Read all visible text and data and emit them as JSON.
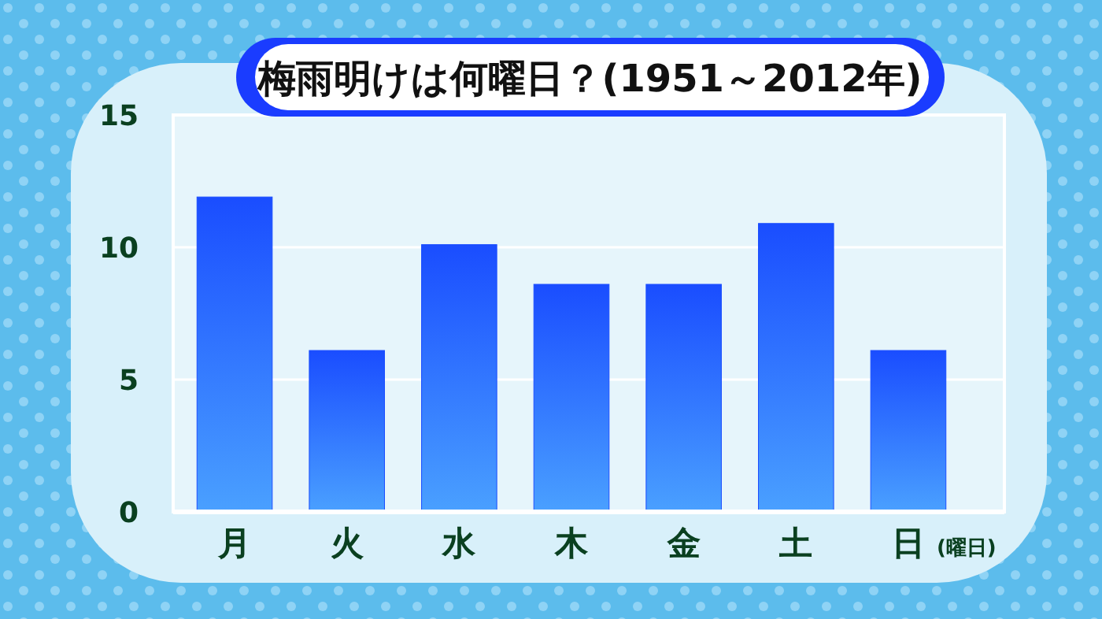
{
  "chart_data": {
    "type": "bar",
    "title": "梅雨明けは何曜日？(1951～2012年)",
    "xlabel": "(曜日)",
    "categories": [
      "月",
      "火",
      "水",
      "木",
      "金",
      "土",
      "日"
    ],
    "values": [
      11.9,
      6.1,
      10.1,
      8.6,
      8.6,
      10.9,
      6.1
    ],
    "color": "#1a4dff",
    "ylim": [
      0,
      15
    ],
    "yticks": [
      0,
      5,
      10,
      15
    ],
    "grid": "y"
  }
}
